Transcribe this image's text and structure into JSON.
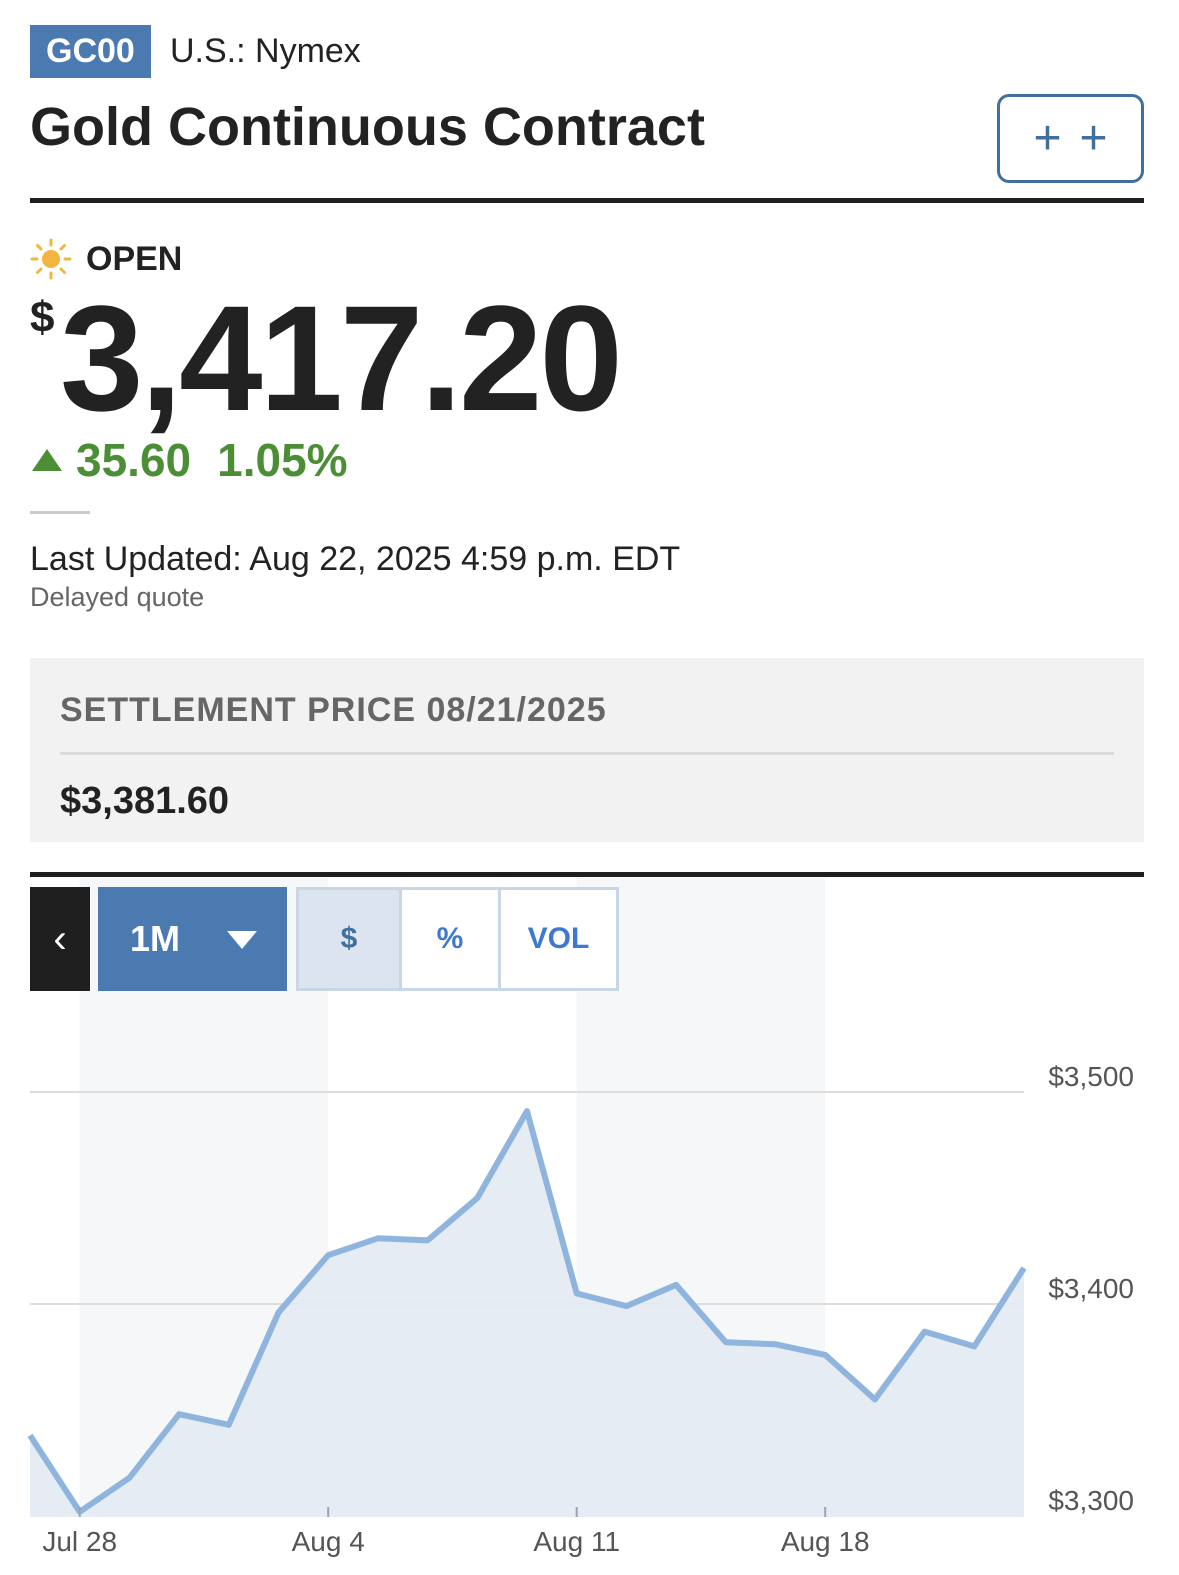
{
  "header": {
    "ticker": "GC00",
    "exchange": "U.S.: Nymex",
    "title": "Gold Continuous Contract",
    "watch_icon": "plus-plus-icon"
  },
  "quote": {
    "status_icon": "sun-icon",
    "status": "OPEN",
    "currency_symbol": "$",
    "price": "3,417.20",
    "change": "35.60",
    "change_percent": "1.05%",
    "change_icon": "up-triangle-icon",
    "last_updated": "Last Updated: Aug 22, 2025 4:59 p.m. EDT",
    "delayed_note": "Delayed quote",
    "colors": {
      "up": "#4b8e36",
      "sun": "#f2b541"
    }
  },
  "settlement": {
    "label": "SETTLEMENT PRICE 08/21/2025",
    "value": "$3,381.60"
  },
  "chart_controls": {
    "back_icon": "chevron-left-icon",
    "range": "1M",
    "modes": [
      "$",
      "%",
      "VOL"
    ],
    "active_mode": "$"
  },
  "chart_data": {
    "type": "area",
    "x": [
      "Jul 25",
      "Jul 28",
      "Jul 29",
      "Jul 30",
      "Jul 31",
      "Aug 1",
      "Aug 4",
      "Aug 5",
      "Aug 6",
      "Aug 7",
      "Aug 8",
      "Aug 11",
      "Aug 12",
      "Aug 13",
      "Aug 14",
      "Aug 15",
      "Aug 18",
      "Aug 19",
      "Aug 20",
      "Aug 21",
      "Aug 22"
    ],
    "values": [
      3338,
      3302,
      3318,
      3348,
      3343,
      3396,
      3423,
      3431,
      3430,
      3450,
      3491,
      3405,
      3399,
      3409,
      3382,
      3381,
      3376,
      3355,
      3387,
      3380,
      3417
    ],
    "x_ticks": [
      "Jul 28",
      "Aug 4",
      "Aug 11",
      "Aug 18"
    ],
    "y_ticks": [
      "$3,500",
      "$3,400",
      "$3,300"
    ],
    "y_tick_values": [
      3500,
      3400,
      3300
    ],
    "ylim": [
      3300,
      3500
    ],
    "grid": true,
    "line_color": "#8fb4dd",
    "fill_color": "#e3eaf2"
  }
}
